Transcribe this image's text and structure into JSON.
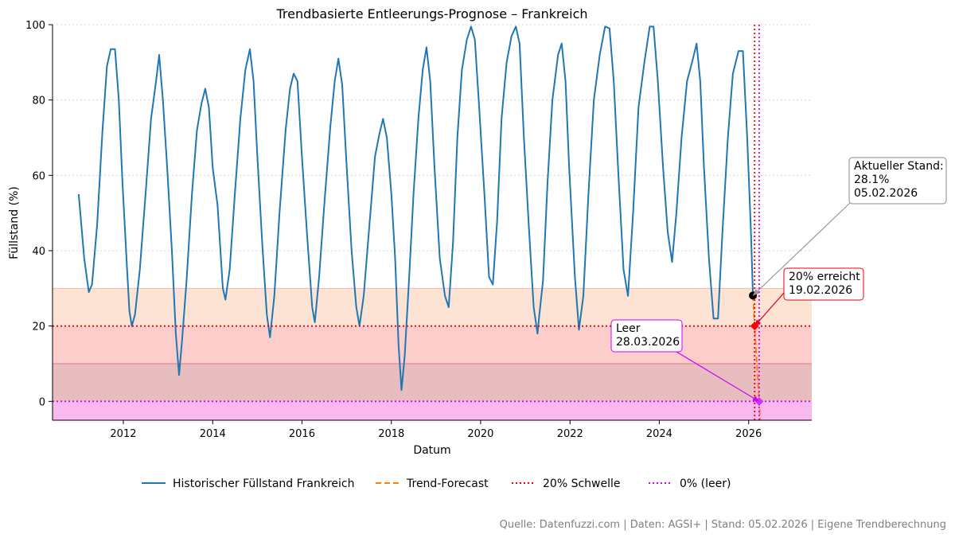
{
  "chart_data": {
    "type": "line",
    "title": "Trendbasierte Entleerungs-Prognose – Frankreich",
    "xlabel": "Datum",
    "ylabel": "Füllstand (%)",
    "xlim": [
      "2010-06-01",
      "2027-06-01"
    ],
    "ylim": [
      -5,
      100
    ],
    "xticks": [
      "2012",
      "2014",
      "2016",
      "2018",
      "2020",
      "2022",
      "2024",
      "2026"
    ],
    "yticks": [
      0,
      20,
      40,
      60,
      80,
      100
    ],
    "grid": "horizontal-dotted",
    "legend_position": "bottom-center",
    "bands": [
      {
        "from": 20,
        "to": 30,
        "color": "#fde3d4"
      },
      {
        "from": 10,
        "to": 20,
        "color": "#fdcdcb"
      },
      {
        "from": 0,
        "to": 10,
        "color": "#e8bdbf"
      },
      {
        "from": -5,
        "to": 0,
        "color": "#f9b8ee"
      }
    ],
    "band_lines": [
      {
        "y": 30,
        "color": "#f3b9a5"
      },
      {
        "y": 10,
        "color": "#e07a7a"
      }
    ],
    "series": [
      {
        "name": "Historischer Füllstand Frankreich",
        "color": "#1f77b4",
        "style": "solid",
        "points": [
          [
            "2011-01-01",
            55
          ],
          [
            "2011-02-15",
            38
          ],
          [
            "2011-03-25",
            29
          ],
          [
            "2011-04-20",
            31
          ],
          [
            "2011-06-01",
            47
          ],
          [
            "2011-07-15",
            72
          ],
          [
            "2011-08-20",
            89
          ],
          [
            "2011-09-20",
            93.5
          ],
          [
            "2011-10-25",
            93.5
          ],
          [
            "2011-11-25",
            80
          ],
          [
            "2011-12-25",
            58
          ],
          [
            "2012-02-01",
            35
          ],
          [
            "2012-02-20",
            24
          ],
          [
            "2012-03-10",
            20
          ],
          [
            "2012-04-05",
            23
          ],
          [
            "2012-05-15",
            35
          ],
          [
            "2012-07-01",
            55
          ],
          [
            "2012-08-15",
            75
          ],
          [
            "2012-09-25",
            85
          ],
          [
            "2012-10-20",
            92
          ],
          [
            "2012-11-20",
            80
          ],
          [
            "2012-12-25",
            62
          ],
          [
            "2013-02-01",
            40
          ],
          [
            "2013-03-05",
            18
          ],
          [
            "2013-04-01",
            7
          ],
          [
            "2013-04-25",
            16
          ],
          [
            "2013-06-01",
            32
          ],
          [
            "2013-07-15",
            55
          ],
          [
            "2013-08-25",
            72
          ],
          [
            "2013-10-01",
            79
          ],
          [
            "2013-11-01",
            83
          ],
          [
            "2013-12-01",
            78
          ],
          [
            "2014-01-01",
            62
          ],
          [
            "2014-02-10",
            52
          ],
          [
            "2014-03-25",
            30
          ],
          [
            "2014-04-15",
            27
          ],
          [
            "2014-05-20",
            35
          ],
          [
            "2014-07-01",
            55
          ],
          [
            "2014-08-15",
            75
          ],
          [
            "2014-09-25",
            88
          ],
          [
            "2014-11-01",
            93.5
          ],
          [
            "2014-12-01",
            85
          ],
          [
            "2015-01-01",
            65
          ],
          [
            "2015-02-10",
            42
          ],
          [
            "2015-03-20",
            23
          ],
          [
            "2015-04-15",
            17
          ],
          [
            "2015-05-20",
            28
          ],
          [
            "2015-07-01",
            50
          ],
          [
            "2015-08-20",
            72
          ],
          [
            "2015-09-25",
            83
          ],
          [
            "2015-10-25",
            87
          ],
          [
            "2015-11-25",
            85
          ],
          [
            "2016-01-01",
            65
          ],
          [
            "2016-02-10",
            45
          ],
          [
            "2016-03-25",
            25
          ],
          [
            "2016-04-15",
            21
          ],
          [
            "2016-05-20",
            33
          ],
          [
            "2016-07-01",
            52
          ],
          [
            "2016-08-20",
            73
          ],
          [
            "2016-09-25",
            85
          ],
          [
            "2016-10-25",
            91
          ],
          [
            "2016-11-25",
            84
          ],
          [
            "2017-01-01",
            62
          ],
          [
            "2017-02-10",
            40
          ],
          [
            "2017-03-20",
            25
          ],
          [
            "2017-04-15",
            20
          ],
          [
            "2017-05-20",
            28
          ],
          [
            "2017-07-01",
            45
          ],
          [
            "2017-08-20",
            65
          ],
          [
            "2017-09-25",
            71
          ],
          [
            "2017-10-25",
            75
          ],
          [
            "2017-11-25",
            70
          ],
          [
            "2018-01-01",
            55
          ],
          [
            "2018-02-01",
            38
          ],
          [
            "2018-03-01",
            15
          ],
          [
            "2018-03-25",
            3
          ],
          [
            "2018-04-20",
            12
          ],
          [
            "2018-05-25",
            32
          ],
          [
            "2018-07-01",
            55
          ],
          [
            "2018-08-10",
            75
          ],
          [
            "2018-09-15",
            88
          ],
          [
            "2018-10-15",
            94
          ],
          [
            "2018-11-15",
            85
          ],
          [
            "2018-12-20",
            62
          ],
          [
            "2019-02-01",
            38
          ],
          [
            "2019-03-15",
            28
          ],
          [
            "2019-04-15",
            25
          ],
          [
            "2019-05-20",
            42
          ],
          [
            "2019-06-25",
            70
          ],
          [
            "2019-08-01",
            88
          ],
          [
            "2019-09-10",
            96
          ],
          [
            "2019-10-15",
            99.5
          ],
          [
            "2019-11-15",
            96
          ],
          [
            "2019-12-20",
            78
          ],
          [
            "2020-02-01",
            55
          ],
          [
            "2020-03-10",
            33
          ],
          [
            "2020-04-10",
            31
          ],
          [
            "2020-05-15",
            48
          ],
          [
            "2020-06-20",
            75
          ],
          [
            "2020-08-01",
            90
          ],
          [
            "2020-09-10",
            97
          ],
          [
            "2020-10-15",
            99.5
          ],
          [
            "2020-11-15",
            95
          ],
          [
            "2020-12-20",
            70
          ],
          [
            "2021-02-01",
            45
          ],
          [
            "2021-03-10",
            25
          ],
          [
            "2021-04-10",
            18
          ],
          [
            "2021-04-25",
            23
          ],
          [
            "2021-05-25",
            32
          ],
          [
            "2021-07-01",
            58
          ],
          [
            "2021-08-10",
            80
          ],
          [
            "2021-09-25",
            92
          ],
          [
            "2021-10-25",
            95
          ],
          [
            "2021-11-25",
            85
          ],
          [
            "2021-12-25",
            62
          ],
          [
            "2022-02-10",
            33
          ],
          [
            "2022-03-15",
            19
          ],
          [
            "2022-04-20",
            28
          ],
          [
            "2022-06-01",
            55
          ],
          [
            "2022-07-15",
            80
          ],
          [
            "2022-09-01",
            92
          ],
          [
            "2022-10-15",
            99.5
          ],
          [
            "2022-11-20",
            99
          ],
          [
            "2022-12-25",
            85
          ],
          [
            "2023-02-01",
            60
          ],
          [
            "2023-03-15",
            35
          ],
          [
            "2023-04-20",
            28
          ],
          [
            "2023-06-01",
            50
          ],
          [
            "2023-07-15",
            78
          ],
          [
            "2023-09-01",
            90
          ],
          [
            "2023-10-15",
            99.5
          ],
          [
            "2023-11-15",
            99.5
          ],
          [
            "2023-12-20",
            85
          ],
          [
            "2024-02-01",
            62
          ],
          [
            "2024-03-10",
            45
          ],
          [
            "2024-04-15",
            37
          ],
          [
            "2024-05-20",
            50
          ],
          [
            "2024-07-01",
            70
          ],
          [
            "2024-08-15",
            85
          ],
          [
            "2024-09-25",
            90
          ],
          [
            "2024-11-01",
            95
          ],
          [
            "2024-12-01",
            85
          ],
          [
            "2025-01-01",
            62
          ],
          [
            "2025-02-10",
            38
          ],
          [
            "2025-03-20",
            22
          ],
          [
            "2025-04-25",
            22
          ],
          [
            "2025-06-01",
            45
          ],
          [
            "2025-07-15",
            70
          ],
          [
            "2025-08-25",
            87
          ],
          [
            "2025-10-10",
            93
          ],
          [
            "2025-11-15",
            93
          ],
          [
            "2025-12-20",
            70
          ],
          [
            "2026-01-20",
            45
          ],
          [
            "2026-02-05",
            28.1
          ]
        ]
      },
      {
        "name": "Trend-Forecast",
        "color": "#ff7f0e",
        "style": "dashed",
        "points": [
          [
            "2026-02-05",
            28.1
          ],
          [
            "2026-02-19",
            20
          ],
          [
            "2026-03-28",
            0
          ],
          [
            "2026-04-05",
            -5
          ]
        ]
      },
      {
        "name": "20% Schwelle",
        "color": "#e8000b",
        "style": "dotted",
        "y": 20,
        "x": "2026-02-19"
      },
      {
        "name": "0% (leer)",
        "color": "#d400ff",
        "style": "dotted",
        "y": 0,
        "x": "2026-03-28"
      }
    ],
    "markers": [
      {
        "x": "2026-02-05",
        "y": 28.1,
        "color": "#000000",
        "shape": "circle"
      },
      {
        "x": "2026-02-19",
        "y": 20,
        "color": "#ff0000",
        "shape": "diamond"
      },
      {
        "x": "2026-03-28",
        "y": 0,
        "color": "#cc33ff",
        "shape": "diamond"
      }
    ],
    "annotations": [
      {
        "lines": [
          "Aktueller Stand:",
          "28.1%",
          "05.02.2026"
        ],
        "target": [
          "2026-02-05",
          28.1
        ],
        "border": "#888888",
        "arrow": "#999999"
      },
      {
        "lines": [
          "20% erreicht",
          "19.02.2026"
        ],
        "target": [
          "2026-02-19",
          20
        ],
        "border": "#e8000b",
        "arrow": "#e8000b"
      },
      {
        "lines": [
          "Leer",
          "28.03.2026"
        ],
        "target": [
          "2026-03-28",
          0
        ],
        "border": "#cc00ff",
        "arrow": "#cc00ff"
      }
    ],
    "footer": "Quelle: Datenfuzzi.com | Daten: AGSI+ | Stand: 05.02.2026 | Eigene Trendberechnung"
  }
}
